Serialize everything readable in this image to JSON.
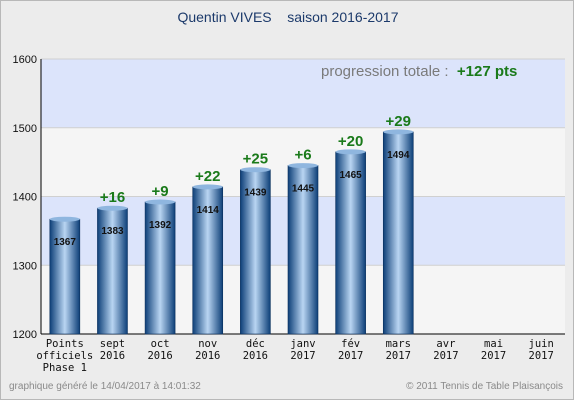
{
  "header": {
    "title": "Quentin VIVES    saison 2016-2017"
  },
  "progression": {
    "label": "progression totale :  ",
    "value": "+127 pts"
  },
  "footer": {
    "left": "graphique généré le 14/04/2017 à 14:01:32",
    "right": "© 2011 Tennis de Table Plaisançois"
  },
  "colors": {
    "bar_dark": "#0d3f78",
    "bar_light": "#b9d5f2",
    "band_blue": "#dce4fb",
    "band_white": "#f5f5f5",
    "delta_green": "#1a7a1a"
  },
  "chart_data": {
    "type": "bar",
    "title": "Quentin VIVES    saison 2016-2017",
    "ylim": [
      1200,
      1600
    ],
    "yticks": [
      1200,
      1300,
      1400,
      1500,
      1600
    ],
    "categories": [
      [
        "Points",
        "officiels",
        "Phase 1"
      ],
      [
        "sept",
        "2016"
      ],
      [
        "oct",
        "2016"
      ],
      [
        "nov",
        "2016"
      ],
      [
        "déc",
        "2016"
      ],
      [
        "janv",
        "2017"
      ],
      [
        "fév",
        "2017"
      ],
      [
        "mars",
        "2017"
      ],
      [
        "avr",
        "2017"
      ],
      [
        "mai",
        "2017"
      ],
      [
        "juin",
        "2017"
      ]
    ],
    "values": [
      1367,
      1383,
      1392,
      1414,
      1439,
      1445,
      1465,
      1494,
      null,
      null,
      null
    ],
    "deltas": [
      null,
      "+16",
      "+9",
      "+22",
      "+25",
      "+6",
      "+20",
      "+29",
      null,
      null,
      null
    ],
    "grid": true
  }
}
